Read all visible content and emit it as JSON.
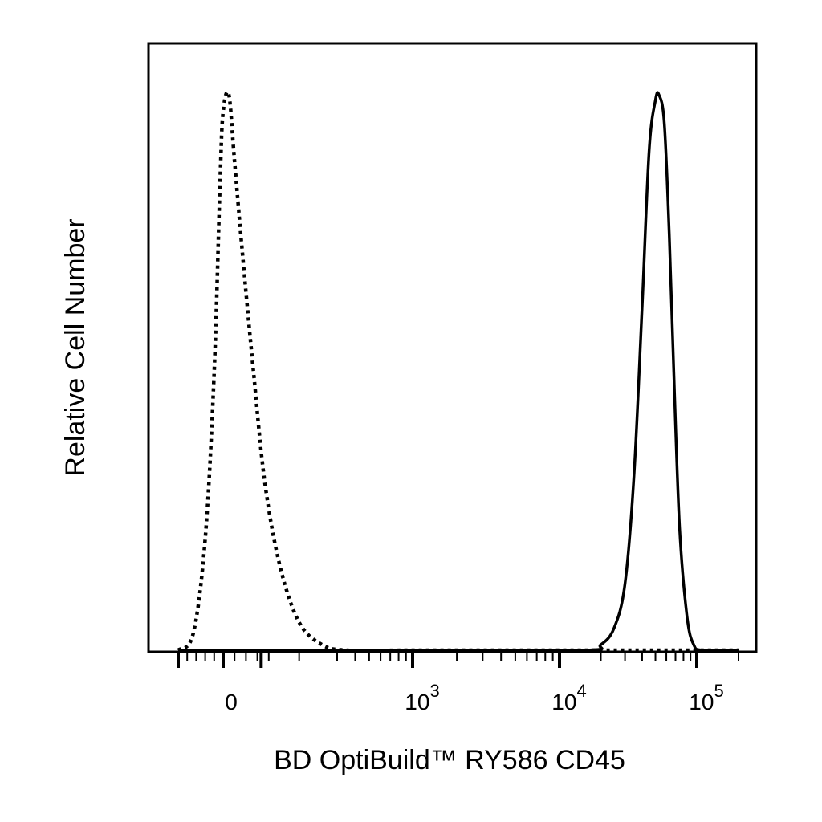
{
  "chart_data": {
    "type": "line",
    "title": "",
    "xlabel": "BD OptiBuild™ RY586 CD45",
    "ylabel": "Relative Cell Number",
    "x_scale": "biexponential",
    "xlim": [
      -150,
      200000
    ],
    "ylim": [
      0,
      1
    ],
    "grid": false,
    "legend": "none",
    "x_ticks": [
      {
        "value": 0,
        "base": "0",
        "exp": ""
      },
      {
        "value": 1000,
        "base": "10",
        "exp": "3"
      },
      {
        "value": 10000,
        "base": "10",
        "exp": "4"
      },
      {
        "value": 100000,
        "base": "10",
        "exp": "5"
      }
    ],
    "series": [
      {
        "style": "dotted",
        "color": "#000000",
        "points": [
          [
            -150,
            0
          ],
          [
            -100,
            0.03
          ],
          [
            -60,
            0.2
          ],
          [
            -30,
            0.5
          ],
          [
            -10,
            0.85
          ],
          [
            0,
            0.97
          ],
          [
            15,
            1.0
          ],
          [
            30,
            0.88
          ],
          [
            50,
            0.72
          ],
          [
            80,
            0.5
          ],
          [
            110,
            0.3
          ],
          [
            150,
            0.15
          ],
          [
            200,
            0.05
          ],
          [
            260,
            0.01
          ],
          [
            350,
            0.0
          ],
          [
            1000,
            0.0
          ],
          [
            10000,
            0.0
          ],
          [
            200000,
            0.0
          ]
        ]
      },
      {
        "style": "solid",
        "color": "#000000",
        "points": [
          [
            -150,
            0
          ],
          [
            1000,
            0.0
          ],
          [
            15000,
            0.0
          ],
          [
            20000,
            0.01
          ],
          [
            25000,
            0.04
          ],
          [
            30000,
            0.12
          ],
          [
            35000,
            0.32
          ],
          [
            40000,
            0.62
          ],
          [
            45000,
            0.9
          ],
          [
            50000,
            0.99
          ],
          [
            53000,
            1.0
          ],
          [
            58000,
            0.95
          ],
          [
            63000,
            0.75
          ],
          [
            68000,
            0.5
          ],
          [
            75000,
            0.22
          ],
          [
            85000,
            0.06
          ],
          [
            95000,
            0.01
          ],
          [
            110000,
            0.0
          ],
          [
            200000,
            0.0
          ]
        ]
      }
    ]
  }
}
